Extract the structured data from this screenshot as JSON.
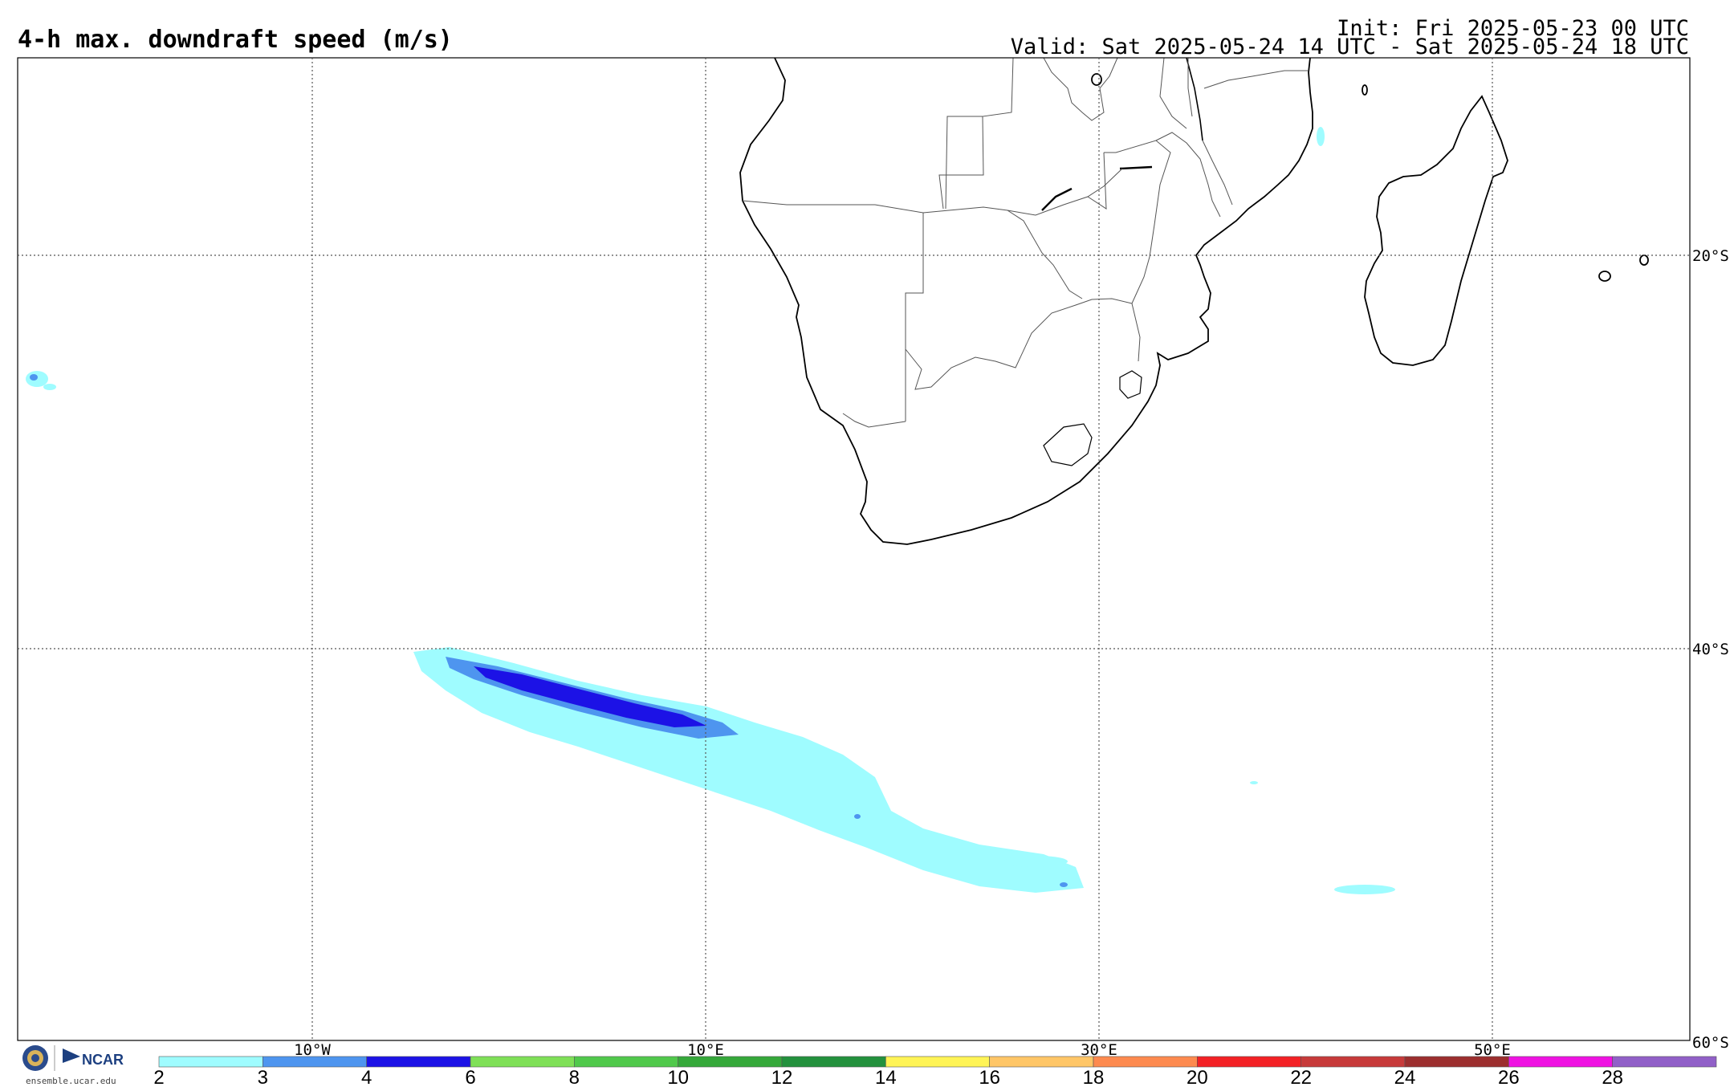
{
  "header": {
    "title": "4-h max. downdraft speed (m/s)",
    "init": "Init: Fri 2025-05-23 00 UTC",
    "valid": "Valid: Sat 2025-05-24 14 UTC - Sat 2025-05-24 18 UTC"
  },
  "map": {
    "lon_range": [
      -25,
      60
    ],
    "lat_range": [
      -60,
      -10
    ],
    "lon_labels": [
      "10°W",
      "10°E",
      "30°E",
      "50°E"
    ],
    "lat_labels": [
      "20°S",
      "40°S",
      "60°S"
    ],
    "gridlines": "dotted"
  },
  "colorbar": {
    "ticks": [
      "2",
      "3",
      "4",
      "6",
      "8",
      "10",
      "12",
      "14",
      "16",
      "18",
      "20",
      "22",
      "24",
      "26",
      "28"
    ],
    "colors": [
      "#9ffcff",
      "#4e95ef",
      "#1c12e6",
      "#7fe057",
      "#50c94b",
      "#35a83a",
      "#23913d",
      "#fff456",
      "#ffc667",
      "#fd8a4f",
      "#f32125",
      "#c73a3a",
      "#9c2e2e",
      "#ef12e2",
      "#9160c8"
    ]
  },
  "logos": {
    "org": "NCAR",
    "url": "ensemble.ucar.edu",
    "icons": [
      "nsf-logo-icon",
      "ncar-logo-icon"
    ]
  }
}
